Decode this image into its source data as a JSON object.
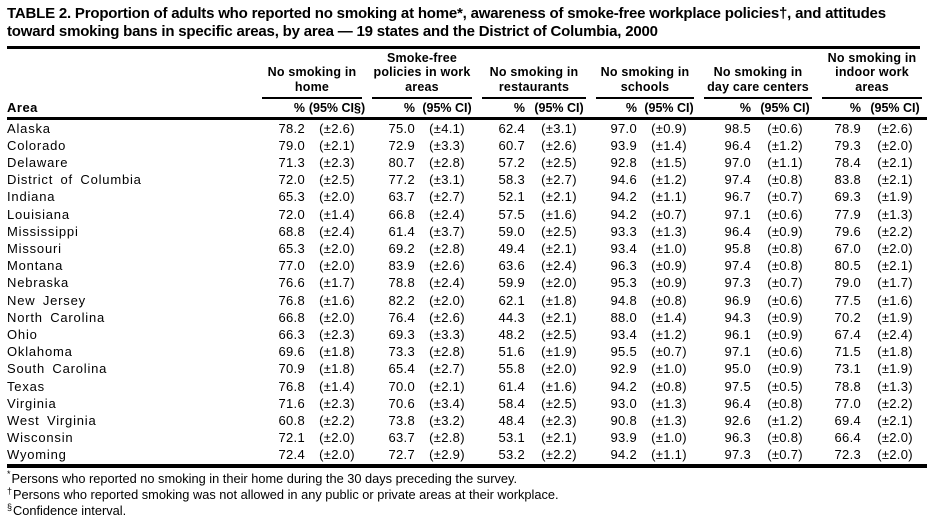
{
  "table": {
    "title": "TABLE 2. Proportion of adults who reported no smoking at home*, awareness of smoke-free workplace policies†, and attitudes toward smoking bans in specific areas, by area — 19 states and the District of Columbia, 2000",
    "area_header": "Area",
    "col_groups": [
      {
        "label": "No smoking in home",
        "pct": "%",
        "ci": "(95% CI§)"
      },
      {
        "label": "Smoke-free policies in work areas",
        "pct": "%",
        "ci": "(95% CI)"
      },
      {
        "label": "No smoking in restaurants",
        "pct": "%",
        "ci": "(95% CI)"
      },
      {
        "label": "No smoking in schools",
        "pct": "%",
        "ci": "(95% CI)"
      },
      {
        "label": "No smoking in day care centers",
        "pct": "%",
        "ci": "(95% CI)"
      },
      {
        "label": "No smoking in indoor work areas",
        "pct": "%",
        "ci": "(95% CI)"
      }
    ],
    "rows": [
      {
        "area": "Alaska",
        "values": [
          [
            "78.2",
            "(±2.6)"
          ],
          [
            "75.0",
            "(±4.1)"
          ],
          [
            "62.4",
            "(±3.1)"
          ],
          [
            "97.0",
            "(±0.9)"
          ],
          [
            "98.5",
            "(±0.6)"
          ],
          [
            "78.9",
            "(±2.6)"
          ]
        ]
      },
      {
        "area": "Colorado",
        "values": [
          [
            "79.0",
            "(±2.1)"
          ],
          [
            "72.9",
            "(±3.3)"
          ],
          [
            "60.7",
            "(±2.6)"
          ],
          [
            "93.9",
            "(±1.4)"
          ],
          [
            "96.4",
            "(±1.2)"
          ],
          [
            "79.3",
            "(±2.0)"
          ]
        ]
      },
      {
        "area": "Delaware",
        "values": [
          [
            "71.3",
            "(±2.3)"
          ],
          [
            "80.7",
            "(±2.8)"
          ],
          [
            "57.2",
            "(±2.5)"
          ],
          [
            "92.8",
            "(±1.5)"
          ],
          [
            "97.0",
            "(±1.1)"
          ],
          [
            "78.4",
            "(±2.1)"
          ]
        ]
      },
      {
        "area": "District of Columbia",
        "values": [
          [
            "72.0",
            "(±2.5)"
          ],
          [
            "77.2",
            "(±3.1)"
          ],
          [
            "58.3",
            "(±2.7)"
          ],
          [
            "94.6",
            "(±1.2)"
          ],
          [
            "97.4",
            "(±0.8)"
          ],
          [
            "83.8",
            "(±2.1)"
          ]
        ]
      },
      {
        "area": "Indiana",
        "values": [
          [
            "65.3",
            "(±2.0)"
          ],
          [
            "63.7",
            "(±2.7)"
          ],
          [
            "52.1",
            "(±2.1)"
          ],
          [
            "94.2",
            "(±1.1)"
          ],
          [
            "96.7",
            "(±0.7)"
          ],
          [
            "69.3",
            "(±1.9)"
          ]
        ]
      },
      {
        "area": "Louisiana",
        "values": [
          [
            "72.0",
            "(±1.4)"
          ],
          [
            "66.8",
            "(±2.4)"
          ],
          [
            "57.5",
            "(±1.6)"
          ],
          [
            "94.2",
            "(±0.7)"
          ],
          [
            "97.1",
            "(±0.6)"
          ],
          [
            "77.9",
            "(±1.3)"
          ]
        ]
      },
      {
        "area": "Mississippi",
        "values": [
          [
            "68.8",
            "(±2.4)"
          ],
          [
            "61.4",
            "(±3.7)"
          ],
          [
            "59.0",
            "(±2.5)"
          ],
          [
            "93.3",
            "(±1.3)"
          ],
          [
            "96.4",
            "(±0.9)"
          ],
          [
            "79.6",
            "(±2.2)"
          ]
        ]
      },
      {
        "area": "Missouri",
        "values": [
          [
            "65.3",
            "(±2.0)"
          ],
          [
            "69.2",
            "(±2.8)"
          ],
          [
            "49.4",
            "(±2.1)"
          ],
          [
            "93.4",
            "(±1.0)"
          ],
          [
            "95.8",
            "(±0.8)"
          ],
          [
            "67.0",
            "(±2.0)"
          ]
        ]
      },
      {
        "area": "Montana",
        "values": [
          [
            "77.0",
            "(±2.0)"
          ],
          [
            "83.9",
            "(±2.6)"
          ],
          [
            "63.6",
            "(±2.4)"
          ],
          [
            "96.3",
            "(±0.9)"
          ],
          [
            "97.4",
            "(±0.8)"
          ],
          [
            "80.5",
            "(±2.1)"
          ]
        ]
      },
      {
        "area": "Nebraska",
        "values": [
          [
            "76.6",
            "(±1.7)"
          ],
          [
            "78.8",
            "(±2.4)"
          ],
          [
            "59.9",
            "(±2.0)"
          ],
          [
            "95.3",
            "(±0.9)"
          ],
          [
            "97.3",
            "(±0.7)"
          ],
          [
            "79.0",
            "(±1.7)"
          ]
        ]
      },
      {
        "area": "New Jersey",
        "values": [
          [
            "76.8",
            "(±1.6)"
          ],
          [
            "82.2",
            "(±2.0)"
          ],
          [
            "62.1",
            "(±1.8)"
          ],
          [
            "94.8",
            "(±0.8)"
          ],
          [
            "96.9",
            "(±0.6)"
          ],
          [
            "77.5",
            "(±1.6)"
          ]
        ]
      },
      {
        "area": "North Carolina",
        "values": [
          [
            "66.8",
            "(±2.0)"
          ],
          [
            "76.4",
            "(±2.6)"
          ],
          [
            "44.3",
            "(±2.1)"
          ],
          [
            "88.0",
            "(±1.4)"
          ],
          [
            "94.3",
            "(±0.9)"
          ],
          [
            "70.2",
            "(±1.9)"
          ]
        ]
      },
      {
        "area": "Ohio",
        "values": [
          [
            "66.3",
            "(±2.3)"
          ],
          [
            "69.3",
            "(±3.3)"
          ],
          [
            "48.2",
            "(±2.5)"
          ],
          [
            "93.4",
            "(±1.2)"
          ],
          [
            "96.1",
            "(±0.9)"
          ],
          [
            "67.4",
            "(±2.4)"
          ]
        ]
      },
      {
        "area": "Oklahoma",
        "values": [
          [
            "69.6",
            "(±1.8)"
          ],
          [
            "73.3",
            "(±2.8)"
          ],
          [
            "51.6",
            "(±1.9)"
          ],
          [
            "95.5",
            "(±0.7)"
          ],
          [
            "97.1",
            "(±0.6)"
          ],
          [
            "71.5",
            "(±1.8)"
          ]
        ]
      },
      {
        "area": "South Carolina",
        "values": [
          [
            "70.9",
            "(±1.8)"
          ],
          [
            "65.4",
            "(±2.7)"
          ],
          [
            "55.8",
            "(±2.0)"
          ],
          [
            "92.9",
            "(±1.0)"
          ],
          [
            "95.0",
            "(±0.9)"
          ],
          [
            "73.1",
            "(±1.9)"
          ]
        ]
      },
      {
        "area": "Texas",
        "values": [
          [
            "76.8",
            "(±1.4)"
          ],
          [
            "70.0",
            "(±2.1)"
          ],
          [
            "61.4",
            "(±1.6)"
          ],
          [
            "94.2",
            "(±0.8)"
          ],
          [
            "97.5",
            "(±0.5)"
          ],
          [
            "78.8",
            "(±1.3)"
          ]
        ]
      },
      {
        "area": "Virginia",
        "values": [
          [
            "71.6",
            "(±2.3)"
          ],
          [
            "70.6",
            "(±3.4)"
          ],
          [
            "58.4",
            "(±2.5)"
          ],
          [
            "93.0",
            "(±1.3)"
          ],
          [
            "96.4",
            "(±0.8)"
          ],
          [
            "77.0",
            "(±2.2)"
          ]
        ]
      },
      {
        "area": "West Virginia",
        "values": [
          [
            "60.8",
            "(±2.2)"
          ],
          [
            "73.8",
            "(±3.2)"
          ],
          [
            "48.4",
            "(±2.3)"
          ],
          [
            "90.8",
            "(±1.3)"
          ],
          [
            "92.6",
            "(±1.2)"
          ],
          [
            "69.4",
            "(±2.1)"
          ]
        ]
      },
      {
        "area": "Wisconsin",
        "values": [
          [
            "72.1",
            "(±2.0)"
          ],
          [
            "63.7",
            "(±2.8)"
          ],
          [
            "53.1",
            "(±2.1)"
          ],
          [
            "93.9",
            "(±1.0)"
          ],
          [
            "96.3",
            "(±0.8)"
          ],
          [
            "66.4",
            "(±2.0)"
          ]
        ]
      },
      {
        "area": "Wyoming",
        "values": [
          [
            "72.4",
            "(±2.0)"
          ],
          [
            "72.7",
            "(±2.9)"
          ],
          [
            "53.2",
            "(±2.2)"
          ],
          [
            "94.2",
            "(±1.1)"
          ],
          [
            "97.3",
            "(±0.7)"
          ],
          [
            "72.3",
            "(±2.0)"
          ]
        ]
      }
    ],
    "footnotes": [
      {
        "marker": "*",
        "text": "Persons who reported no smoking in their home during the 30 days preceding the survey."
      },
      {
        "marker": "†",
        "text": "Persons who reported smoking was not allowed in any public or private areas at their workplace."
      },
      {
        "marker": "§",
        "text": "Confidence interval."
      }
    ]
  }
}
